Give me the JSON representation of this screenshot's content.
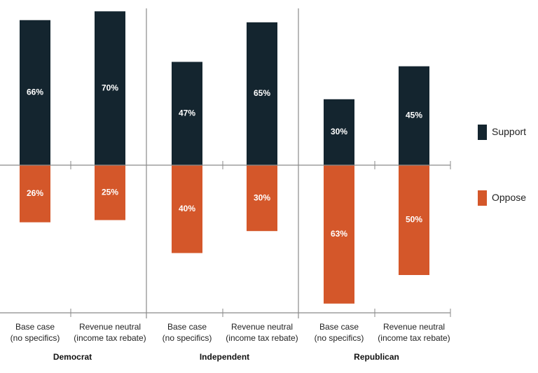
{
  "chart_data": {
    "type": "bar",
    "stacked_diverging": true,
    "groups": [
      {
        "name": "Democrat",
        "categories": [
          {
            "label_lines": [
              "Base case",
              "(no specifics)"
            ],
            "support": 66,
            "oppose": 26
          },
          {
            "label_lines": [
              "Revenue neutral",
              "(income tax rebate)"
            ],
            "support": 70,
            "oppose": 25
          }
        ]
      },
      {
        "name": "Independent",
        "categories": [
          {
            "label_lines": [
              "Base case",
              "(no specifics)"
            ],
            "support": 47,
            "oppose": 40
          },
          {
            "label_lines": [
              "Revenue neutral",
              "(income tax rebate)"
            ],
            "support": 65,
            "oppose": 30
          }
        ]
      },
      {
        "name": "Republican",
        "categories": [
          {
            "label_lines": [
              "Base case",
              "(no specifics)"
            ],
            "support": 30,
            "oppose": 63
          },
          {
            "label_lines": [
              "Revenue neutral",
              "(income tax rebate)"
            ],
            "support": 45,
            "oppose": 50
          }
        ]
      }
    ],
    "series": [
      {
        "name": "Support",
        "color": "#14252f"
      },
      {
        "name": "Oppose",
        "color": "#d4572a"
      }
    ],
    "value_suffix": "%",
    "ylim": [
      -65,
      72
    ],
    "legend_position": "right",
    "grid": false
  }
}
